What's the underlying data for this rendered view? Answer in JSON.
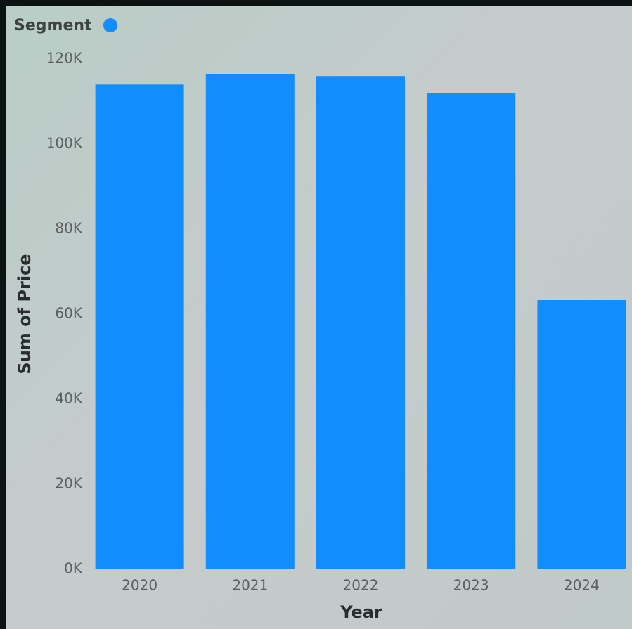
{
  "chart_data": {
    "type": "bar",
    "legend_title": "Segment",
    "x_label": "Year",
    "y_label": "Sum of Price",
    "categories": [
      "2020",
      "2021",
      "2022",
      "2023",
      "2024"
    ],
    "series": [
      {
        "color": "#118dff",
        "values": [
          114000,
          116500,
          116000,
          112000,
          63300
        ]
      }
    ],
    "ylim": [
      0,
      120000
    ],
    "yticks": [
      {
        "value": 0,
        "label": "0K"
      },
      {
        "value": 20000,
        "label": "20K"
      },
      {
        "value": 40000,
        "label": "40K"
      },
      {
        "value": 60000,
        "label": "60K"
      },
      {
        "value": 80000,
        "label": "80K"
      },
      {
        "value": 100000,
        "label": "100K"
      },
      {
        "value": 120000,
        "label": "120K"
      }
    ],
    "grid": false
  }
}
